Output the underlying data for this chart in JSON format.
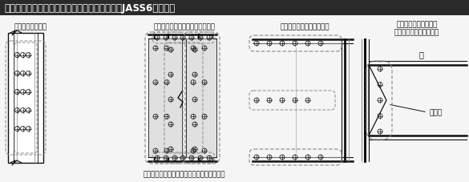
{
  "title": "図５　仮ボルト締付けにおける一群の考え方（JASS6による）",
  "title_bg": "#2a2a2a",
  "title_color": "#ffffff",
  "bg_color": "#f5f5f5",
  "labels": [
    "（柱継手の場合）",
    "（フルウェブの梁の継手の場合）",
    "（梁ガセット接合の場合）",
    "（フランジ溶接ウェブ\n高力ボルト接合の場合）"
  ],
  "bottom_text": "フランジとウェブにバランスよく配置する。",
  "weld_label": "溶接部",
  "beam_label": "梁"
}
